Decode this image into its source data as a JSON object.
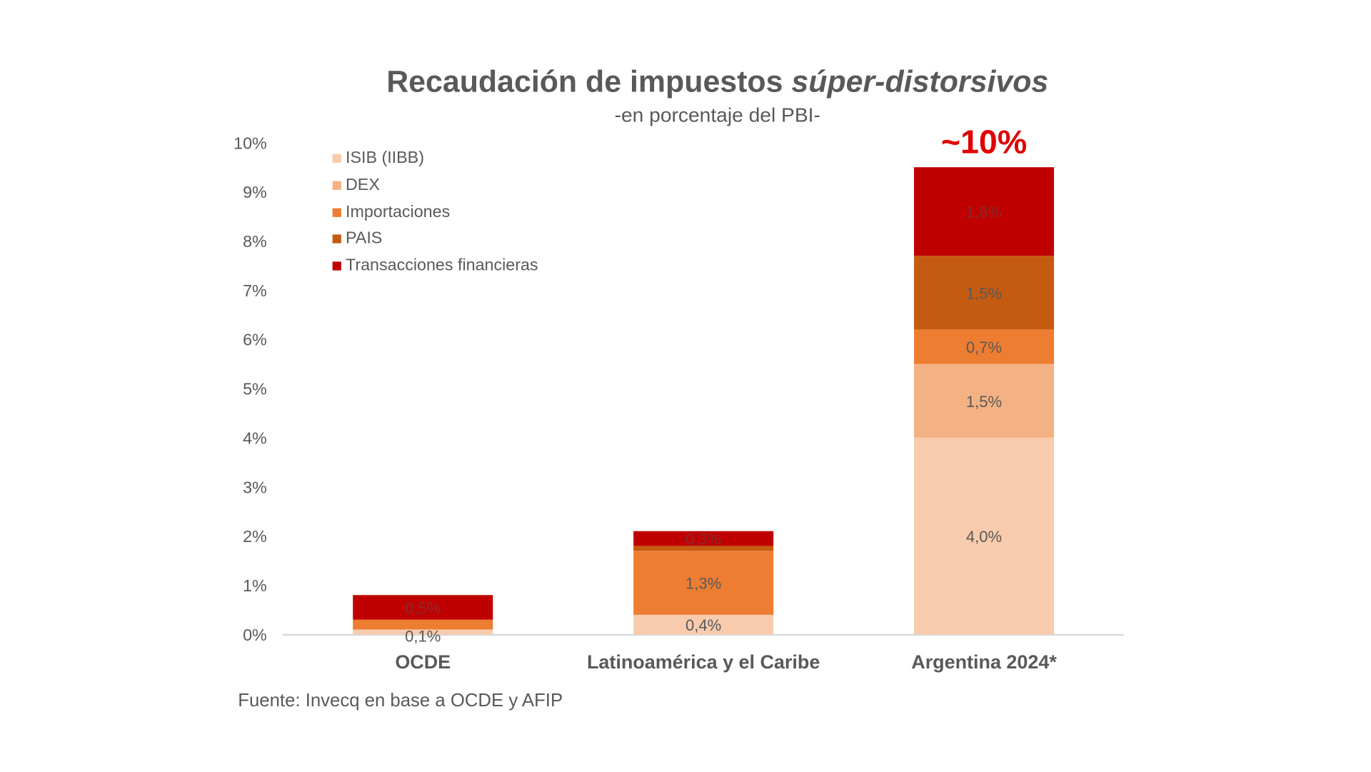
{
  "chart_data": {
    "type": "bar",
    "stacked": true,
    "title": "Recaudación de impuestos",
    "title_italic": "súper-distorsivos",
    "subtitle": "-en porcentaje del PBI-",
    "source": "Fuente: Invecq en base a OCDE y AFIP",
    "categories": [
      "OCDE",
      "Latinoamérica y el Caribe",
      "Argentina 2024*"
    ],
    "ylim": [
      0,
      10
    ],
    "yticks": [
      "0%",
      "1%",
      "2%",
      "3%",
      "4%",
      "5%",
      "6%",
      "7%",
      "8%",
      "9%",
      "10%"
    ],
    "grid": false,
    "legend_position": "top-left",
    "series": [
      {
        "name": "ISIB (IIBB)",
        "color": "#f8cbad",
        "values": [
          0.1,
          0.4,
          4.0
        ],
        "labels": [
          "0,1%",
          "0,4%",
          "4,0%"
        ]
      },
      {
        "name": "DEX",
        "color": "#f4b183",
        "values": [
          0,
          0,
          1.5
        ],
        "labels": [
          "",
          "",
          "1,5%"
        ]
      },
      {
        "name": "Importaciones",
        "color": "#ed7d31",
        "values": [
          0.2,
          1.3,
          0.7
        ],
        "labels": [
          "",
          "1,3%",
          "0,7%"
        ]
      },
      {
        "name": "PAIS",
        "color": "#c55a11",
        "values": [
          0,
          0.1,
          1.5
        ],
        "labels": [
          "",
          "",
          "1,5%"
        ]
      },
      {
        "name": "Transacciones financieras",
        "color": "#c00000",
        "values": [
          0.5,
          0.3,
          1.8
        ],
        "labels": [
          "0,5%",
          "0,3%",
          "1,8%"
        ]
      }
    ],
    "annotation": {
      "text": "~10%",
      "category": "Argentina 2024*",
      "color": "#e00000"
    }
  }
}
